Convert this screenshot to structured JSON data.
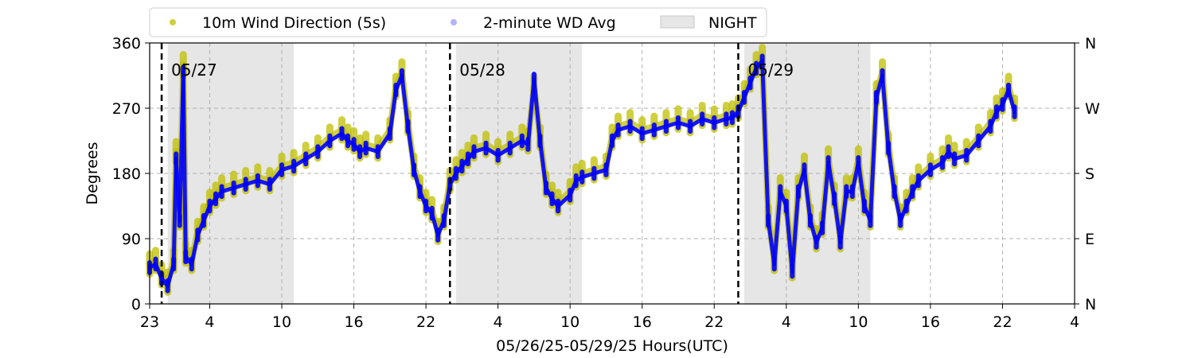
{
  "chart_data": {
    "type": "scatter",
    "xlabel": "05/26/25-05/29/25  Hours(UTC)",
    "ylabel": "Degrees",
    "x_ticks": [
      "23",
      "4",
      "10",
      "16",
      "22",
      "4",
      "10",
      "16",
      "22",
      "4",
      "10",
      "16",
      "22",
      "4"
    ],
    "x_start_hour": 23,
    "x_range_hours": [
      0,
      77
    ],
    "ylim": [
      0,
      360
    ],
    "y_ticks": [
      0,
      90,
      180,
      270,
      360
    ],
    "right_ticks": [
      {
        "value": 0,
        "label": "N"
      },
      {
        "value": 90,
        "label": "E"
      },
      {
        "value": 180,
        "label": "S"
      },
      {
        "value": 270,
        "label": "W"
      },
      {
        "value": 360,
        "label": "N"
      }
    ],
    "grid": true,
    "legend": {
      "placement": "top-left, above plot",
      "entries": [
        {
          "label": "10m Wind Direction (5s)",
          "color": "#bfbf00"
        },
        {
          "label": "2-minute WD Avg",
          "color": "#0000ff"
        },
        {
          "label": "NIGHT",
          "color": "#e6e6e6"
        }
      ]
    },
    "day_markers": [
      {
        "x_hours": 1,
        "label": "05/27"
      },
      {
        "x_hours": 25,
        "label": "05/28"
      },
      {
        "x_hours": 49,
        "label": "05/29"
      }
    ],
    "night_spans_hours": [
      [
        1.5,
        12
      ],
      [
        25.5,
        36
      ],
      [
        49.5,
        60
      ]
    ],
    "series": [
      {
        "name": "10m Wind Direction (5s)",
        "color": "#bfbf00",
        "points": [
          [
            0,
            55
          ],
          [
            0.5,
            60
          ],
          [
            1,
            40
          ],
          [
            1.5,
            30
          ],
          [
            2,
            60
          ],
          [
            2.2,
            210
          ],
          [
            2.5,
            120
          ],
          [
            2.8,
            330
          ],
          [
            3,
            70
          ],
          [
            3.5,
            60
          ],
          [
            4,
            100
          ],
          [
            4.5,
            120
          ],
          [
            5,
            140
          ],
          [
            5.5,
            150
          ],
          [
            6,
            160
          ],
          [
            7,
            165
          ],
          [
            8,
            170
          ],
          [
            9,
            175
          ],
          [
            10,
            170
          ],
          [
            11,
            190
          ],
          [
            12,
            195
          ],
          [
            13,
            205
          ],
          [
            14,
            215
          ],
          [
            15,
            230
          ],
          [
            16,
            240
          ],
          [
            16.5,
            230
          ],
          [
            17,
            225
          ],
          [
            17.5,
            215
          ],
          [
            18,
            220
          ],
          [
            19,
            215
          ],
          [
            20,
            240
          ],
          [
            20.5,
            300
          ],
          [
            21,
            320
          ],
          [
            21.5,
            250
          ],
          [
            22,
            190
          ],
          [
            22.5,
            160
          ],
          [
            23,
            140
          ],
          [
            23.5,
            130
          ],
          [
            24,
            100
          ],
          [
            24.5,
            120
          ],
          [
            25,
            170
          ],
          [
            25.5,
            185
          ],
          [
            26,
            195
          ],
          [
            26.5,
            205
          ],
          [
            27,
            215
          ],
          [
            28,
            220
          ],
          [
            29,
            210
          ],
          [
            30,
            220
          ],
          [
            31,
            230
          ],
          [
            31.5,
            225
          ],
          [
            32,
            300
          ],
          [
            32.5,
            230
          ],
          [
            33,
            165
          ],
          [
            33.5,
            150
          ],
          [
            34,
            140
          ],
          [
            35,
            155
          ],
          [
            35.5,
            175
          ],
          [
            36,
            180
          ],
          [
            37,
            185
          ],
          [
            38,
            190
          ],
          [
            38.5,
            230
          ],
          [
            39,
            245
          ],
          [
            40,
            250
          ],
          [
            41,
            240
          ],
          [
            42,
            245
          ],
          [
            43,
            250
          ],
          [
            44,
            255
          ],
          [
            45,
            250
          ],
          [
            46,
            260
          ],
          [
            47,
            255
          ],
          [
            48,
            260
          ],
          [
            48.5,
            262
          ],
          [
            49,
            270
          ],
          [
            49.5,
            290
          ],
          [
            50,
            310
          ],
          [
            50.5,
            330
          ],
          [
            51,
            340
          ],
          [
            51.5,
            120
          ],
          [
            52,
            60
          ],
          [
            52.5,
            160
          ],
          [
            53,
            140
          ],
          [
            53.5,
            50
          ],
          [
            54,
            160
          ],
          [
            54.5,
            190
          ],
          [
            55,
            120
          ],
          [
            55.5,
            90
          ],
          [
            56,
            110
          ],
          [
            56.5,
            200
          ],
          [
            57,
            150
          ],
          [
            57.5,
            90
          ],
          [
            58,
            160
          ],
          [
            58.5,
            160
          ],
          [
            59,
            200
          ],
          [
            59.5,
            140
          ],
          [
            60,
            120
          ],
          [
            60.5,
            290
          ],
          [
            61,
            320
          ],
          [
            61.5,
            220
          ],
          [
            62,
            160
          ],
          [
            62.5,
            120
          ],
          [
            63,
            140
          ],
          [
            63.5,
            160
          ],
          [
            64,
            175
          ],
          [
            65,
            190
          ],
          [
            66,
            200
          ],
          [
            66.5,
            215
          ],
          [
            67,
            205
          ],
          [
            68,
            210
          ],
          [
            69,
            230
          ],
          [
            70,
            250
          ],
          [
            70.5,
            270
          ],
          [
            71,
            280
          ],
          [
            71.5,
            300
          ],
          [
            72,
            270
          ]
        ]
      },
      {
        "name": "2-minute WD Avg",
        "color": "#0000ff",
        "points": [
          [
            0,
            50
          ],
          [
            0.5,
            55
          ],
          [
            1,
            35
          ],
          [
            1.5,
            25
          ],
          [
            2,
            55
          ],
          [
            2.2,
            200
          ],
          [
            2.5,
            115
          ],
          [
            2.8,
            320
          ],
          [
            3,
            65
          ],
          [
            3.5,
            55
          ],
          [
            4,
            95
          ],
          [
            4.5,
            115
          ],
          [
            5,
            135
          ],
          [
            5.5,
            145
          ],
          [
            6,
            155
          ],
          [
            7,
            160
          ],
          [
            8,
            165
          ],
          [
            9,
            170
          ],
          [
            10,
            165
          ],
          [
            11,
            185
          ],
          [
            12,
            190
          ],
          [
            13,
            200
          ],
          [
            14,
            210
          ],
          [
            15,
            225
          ],
          [
            16,
            235
          ],
          [
            16.5,
            225
          ],
          [
            17,
            220
          ],
          [
            17.5,
            210
          ],
          [
            18,
            215
          ],
          [
            19,
            210
          ],
          [
            20,
            235
          ],
          [
            20.5,
            295
          ],
          [
            21,
            315
          ],
          [
            21.5,
            245
          ],
          [
            22,
            185
          ],
          [
            22.5,
            155
          ],
          [
            23,
            135
          ],
          [
            23.5,
            125
          ],
          [
            24,
            95
          ],
          [
            24.5,
            115
          ],
          [
            25,
            165
          ],
          [
            25.5,
            180
          ],
          [
            26,
            190
          ],
          [
            26.5,
            200
          ],
          [
            27,
            210
          ],
          [
            28,
            215
          ],
          [
            29,
            205
          ],
          [
            30,
            215
          ],
          [
            31,
            225
          ],
          [
            31.5,
            220
          ],
          [
            32,
            310
          ],
          [
            32.5,
            225
          ],
          [
            33,
            160
          ],
          [
            33.5,
            145
          ],
          [
            34,
            135
          ],
          [
            35,
            150
          ],
          [
            35.5,
            170
          ],
          [
            36,
            175
          ],
          [
            37,
            180
          ],
          [
            38,
            185
          ],
          [
            38.5,
            225
          ],
          [
            39,
            240
          ],
          [
            40,
            245
          ],
          [
            41,
            235
          ],
          [
            42,
            240
          ],
          [
            43,
            245
          ],
          [
            44,
            250
          ],
          [
            45,
            245
          ],
          [
            46,
            255
          ],
          [
            47,
            250
          ],
          [
            48,
            255
          ],
          [
            48.5,
            257
          ],
          [
            49,
            265
          ],
          [
            49.5,
            285
          ],
          [
            50,
            305
          ],
          [
            50.5,
            325
          ],
          [
            51,
            335
          ],
          [
            51.5,
            115
          ],
          [
            52,
            55
          ],
          [
            52.5,
            155
          ],
          [
            53,
            135
          ],
          [
            53.5,
            45
          ],
          [
            54,
            155
          ],
          [
            54.5,
            185
          ],
          [
            55,
            115
          ],
          [
            55.5,
            85
          ],
          [
            56,
            105
          ],
          [
            56.5,
            195
          ],
          [
            57,
            145
          ],
          [
            57.5,
            85
          ],
          [
            58,
            155
          ],
          [
            58.5,
            155
          ],
          [
            59,
            195
          ],
          [
            59.5,
            135
          ],
          [
            60,
            115
          ],
          [
            60.5,
            285
          ],
          [
            61,
            315
          ],
          [
            61.5,
            215
          ],
          [
            62,
            155
          ],
          [
            62.5,
            115
          ],
          [
            63,
            135
          ],
          [
            63.5,
            155
          ],
          [
            64,
            170
          ],
          [
            65,
            185
          ],
          [
            66,
            195
          ],
          [
            66.5,
            210
          ],
          [
            67,
            200
          ],
          [
            68,
            205
          ],
          [
            69,
            225
          ],
          [
            70,
            245
          ],
          [
            70.5,
            265
          ],
          [
            71,
            275
          ],
          [
            71.5,
            295
          ],
          [
            72,
            265
          ]
        ]
      }
    ]
  }
}
